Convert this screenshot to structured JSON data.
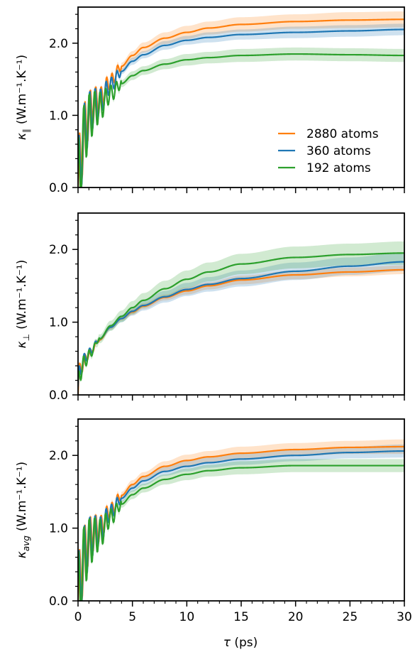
{
  "figure": {
    "xlabel_symbol": "τ",
    "xlabel_unit": " (ps)"
  },
  "legend": {
    "placement": "lower-right of top panel",
    "entries": [
      {
        "label": "2880 atoms",
        "color": "#ff7f0e"
      },
      {
        "label": "360 atoms",
        "color": "#1f77b4"
      },
      {
        "label": "192 atoms",
        "color": "#2ca02c"
      }
    ]
  },
  "chart_data": [
    {
      "type": "line",
      "panel": "kappa-parallel",
      "ylabel": {
        "symbol": "κ",
        "sub": "∥",
        "unit": "(W.m⁻¹.K⁻¹)"
      },
      "xlim": [
        0,
        30
      ],
      "ylim": [
        0,
        2.5
      ],
      "xticks": [
        0,
        5,
        10,
        15,
        20,
        25,
        30
      ],
      "xtick_labels": [
        "",
        "",
        "",
        "",
        "",
        "",
        ""
      ],
      "yticks": [
        0.0,
        1.0,
        2.0
      ],
      "ytick_labels": [
        "0.0",
        "1.0",
        "2.0"
      ],
      "band": "shaded ±uncertainty",
      "series": [
        {
          "name": "2880 atoms",
          "color": "#ff7f0e",
          "x": [
            2,
            3,
            4,
            5,
            6,
            8,
            10,
            12,
            15,
            20,
            25,
            30
          ],
          "y": [
            1.22,
            1.48,
            1.68,
            1.83,
            1.94,
            2.07,
            2.15,
            2.21,
            2.26,
            2.3,
            2.32,
            2.33
          ],
          "err": [
            0.03,
            0.04,
            0.05,
            0.06,
            0.07,
            0.08,
            0.09,
            0.09,
            0.1,
            0.1,
            0.11,
            0.11
          ]
        },
        {
          "name": "360 atoms",
          "color": "#1f77b4",
          "x": [
            2,
            3,
            4,
            5,
            6,
            8,
            10,
            12,
            15,
            20,
            25,
            30
          ],
          "y": [
            1.18,
            1.42,
            1.61,
            1.75,
            1.84,
            1.97,
            2.04,
            2.08,
            2.12,
            2.15,
            2.17,
            2.19
          ],
          "err": [
            0.03,
            0.04,
            0.04,
            0.05,
            0.05,
            0.06,
            0.06,
            0.07,
            0.07,
            0.08,
            0.08,
            0.08
          ]
        },
        {
          "name": "192 atoms",
          "color": "#2ca02c",
          "x": [
            2,
            3,
            4,
            5,
            6,
            8,
            10,
            12,
            15,
            20,
            25,
            30
          ],
          "y": [
            1.12,
            1.3,
            1.44,
            1.55,
            1.62,
            1.71,
            1.77,
            1.8,
            1.83,
            1.85,
            1.84,
            1.83
          ],
          "err": [
            0.03,
            0.04,
            0.05,
            0.06,
            0.06,
            0.07,
            0.08,
            0.08,
            0.09,
            0.09,
            0.09,
            0.09
          ]
        }
      ],
      "oscillation": {
        "start": 0,
        "end": 4,
        "period": 0.5
      }
    },
    {
      "type": "line",
      "panel": "kappa-perpendicular",
      "ylabel": {
        "symbol": "κ",
        "sub": "⊥",
        "unit": "(W.m⁻¹.K⁻¹)"
      },
      "xlim": [
        0,
        30
      ],
      "ylim": [
        0,
        2.5
      ],
      "xticks": [
        0,
        5,
        10,
        15,
        20,
        25,
        30
      ],
      "xtick_labels": [
        "",
        "",
        "",
        "",
        "",
        "",
        ""
      ],
      "yticks": [
        0.0,
        1.0,
        2.0
      ],
      "ytick_labels": [
        "0.0",
        "1.0",
        "2.0"
      ],
      "band": "shaded ±uncertainty",
      "series": [
        {
          "name": "2880 atoms",
          "color": "#ff7f0e",
          "x": [
            0.5,
            1,
            2,
            3,
            4,
            5,
            6,
            8,
            10,
            12,
            15,
            20,
            25,
            30
          ],
          "y": [
            0.45,
            0.57,
            0.76,
            0.93,
            1.05,
            1.14,
            1.22,
            1.34,
            1.43,
            1.5,
            1.58,
            1.65,
            1.69,
            1.72
          ],
          "err": [
            0.02,
            0.02,
            0.02,
            0.03,
            0.03,
            0.04,
            0.04,
            0.04,
            0.05,
            0.05,
            0.06,
            0.06,
            0.06,
            0.06
          ]
        },
        {
          "name": "360 atoms",
          "color": "#1f77b4",
          "x": [
            0.5,
            1,
            2,
            3,
            4,
            5,
            6,
            8,
            10,
            12,
            15,
            20,
            25,
            30
          ],
          "y": [
            0.46,
            0.58,
            0.77,
            0.93,
            1.05,
            1.15,
            1.23,
            1.35,
            1.45,
            1.52,
            1.6,
            1.7,
            1.77,
            1.83
          ],
          "err": [
            0.02,
            0.02,
            0.03,
            0.04,
            0.05,
            0.06,
            0.07,
            0.08,
            0.09,
            0.1,
            0.11,
            0.12,
            0.12,
            0.13
          ]
        },
        {
          "name": "192 atoms",
          "color": "#2ca02c",
          "x": [
            0.5,
            1,
            2,
            3,
            4,
            5,
            6,
            8,
            10,
            12,
            15,
            20,
            25,
            30
          ],
          "y": [
            0.42,
            0.55,
            0.77,
            0.95,
            1.08,
            1.2,
            1.3,
            1.46,
            1.59,
            1.69,
            1.8,
            1.89,
            1.93,
            1.95
          ],
          "err": [
            0.03,
            0.04,
            0.06,
            0.07,
            0.08,
            0.09,
            0.1,
            0.11,
            0.12,
            0.13,
            0.14,
            0.15,
            0.15,
            0.16
          ]
        }
      ],
      "oscillation": {
        "start": 0,
        "end": 2,
        "period": 0.5
      }
    },
    {
      "type": "line",
      "panel": "kappa-average",
      "ylabel": {
        "symbol": "κ",
        "sub": "avg",
        "unit": "(W.m⁻¹.K⁻¹)"
      },
      "xlim": [
        0,
        30
      ],
      "ylim": [
        0,
        2.5
      ],
      "xticks": [
        0,
        5,
        10,
        15,
        20,
        25,
        30
      ],
      "xtick_labels": [
        "0",
        "5",
        "10",
        "15",
        "20",
        "25",
        "30"
      ],
      "yticks": [
        0.0,
        1.0,
        2.0
      ],
      "ytick_labels": [
        "0.0",
        "1.0",
        "2.0"
      ],
      "xlabel": "τ (ps)",
      "band": "shaded ±uncertainty",
      "series": [
        {
          "name": "2880 atoms",
          "color": "#ff7f0e",
          "x": [
            2,
            3,
            4,
            5,
            6,
            8,
            10,
            12,
            15,
            20,
            25,
            30
          ],
          "y": [
            1.0,
            1.25,
            1.45,
            1.6,
            1.71,
            1.85,
            1.93,
            1.98,
            2.03,
            2.08,
            2.11,
            2.12
          ],
          "err": [
            0.03,
            0.04,
            0.05,
            0.06,
            0.06,
            0.07,
            0.08,
            0.08,
            0.09,
            0.09,
            0.09,
            0.1
          ]
        },
        {
          "name": "360 atoms",
          "color": "#1f77b4",
          "x": [
            2,
            3,
            4,
            5,
            6,
            8,
            10,
            12,
            15,
            20,
            25,
            30
          ],
          "y": [
            0.97,
            1.22,
            1.41,
            1.55,
            1.65,
            1.78,
            1.85,
            1.9,
            1.95,
            2.0,
            2.04,
            2.06
          ],
          "err": [
            0.03,
            0.04,
            0.05,
            0.05,
            0.06,
            0.06,
            0.07,
            0.07,
            0.08,
            0.08,
            0.08,
            0.09
          ]
        },
        {
          "name": "192 atoms",
          "color": "#2ca02c",
          "x": [
            2,
            3,
            4,
            5,
            6,
            8,
            10,
            12,
            15,
            20,
            25,
            30
          ],
          "y": [
            0.92,
            1.15,
            1.33,
            1.46,
            1.55,
            1.67,
            1.74,
            1.79,
            1.83,
            1.86,
            1.86,
            1.86
          ],
          "err": [
            0.03,
            0.04,
            0.05,
            0.06,
            0.06,
            0.07,
            0.08,
            0.08,
            0.09,
            0.09,
            0.09,
            0.09
          ]
        }
      ],
      "oscillation": {
        "start": 0,
        "end": 4,
        "period": 0.5
      }
    }
  ]
}
